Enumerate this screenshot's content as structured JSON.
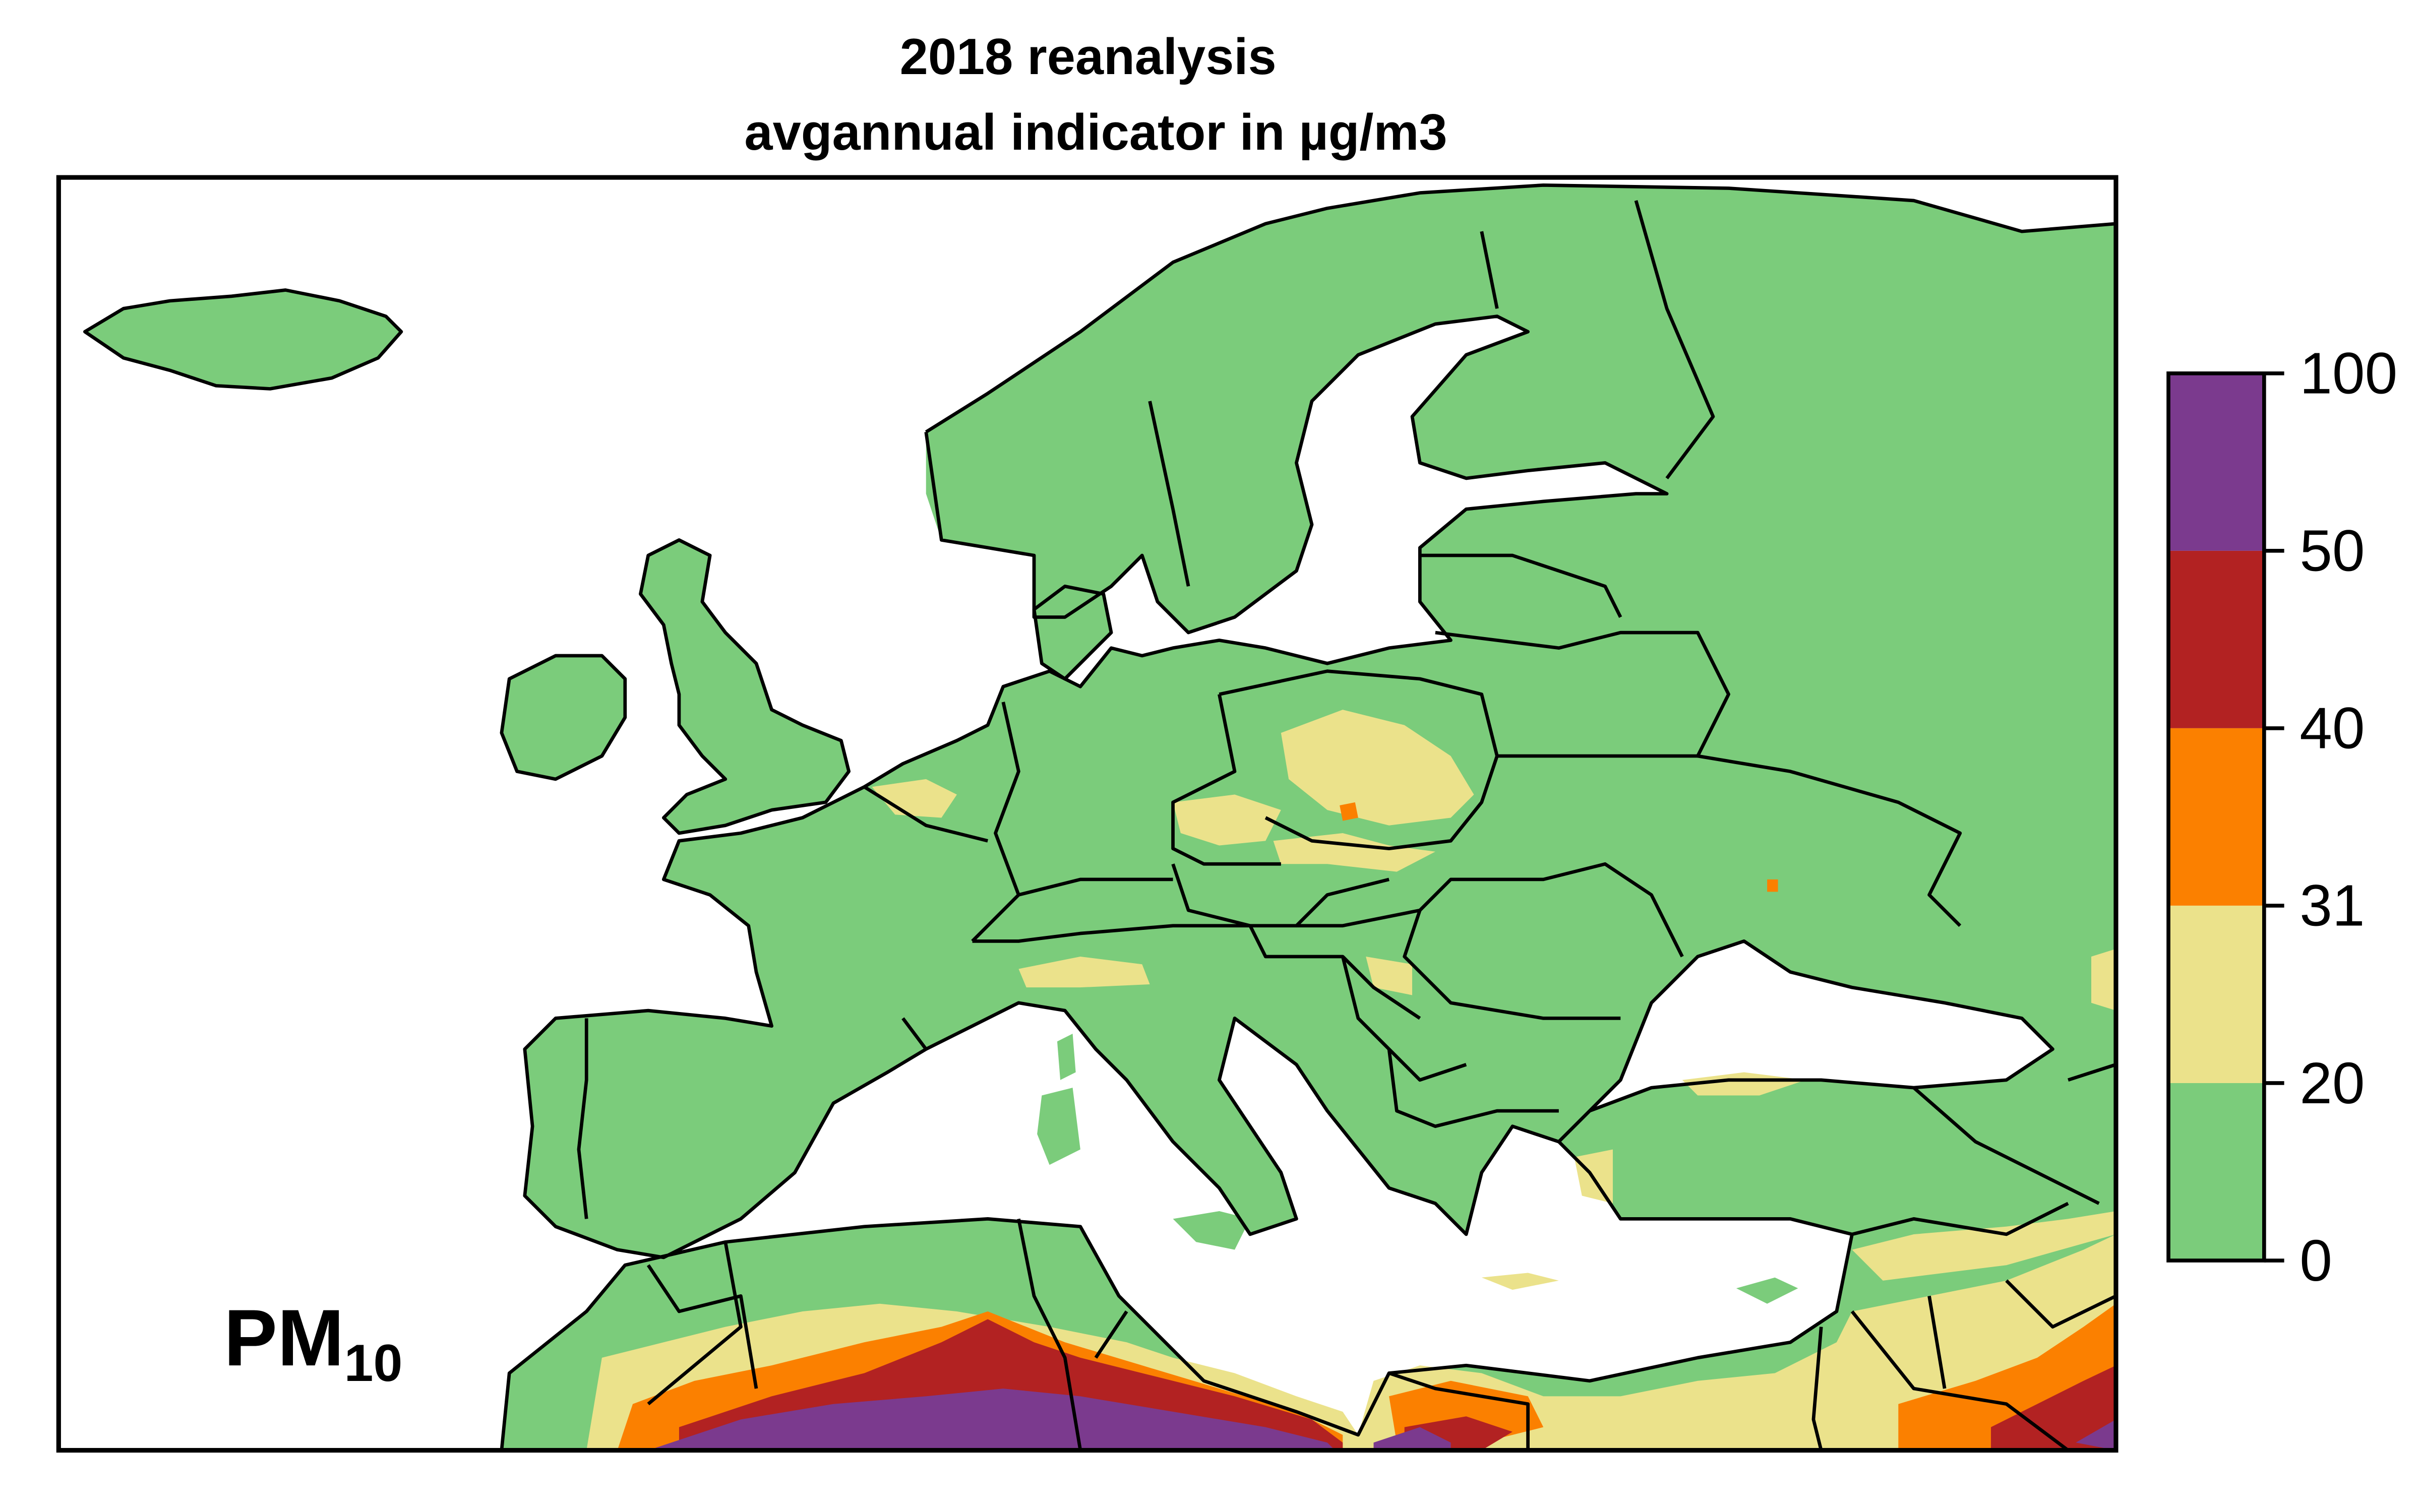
{
  "title": {
    "line1": "2018 reanalysis",
    "line2": "avgannual indicator in µg/m3"
  },
  "pollutant": {
    "label": "PM",
    "subscript": "10"
  },
  "legend": {
    "ticks": [
      "0",
      "20",
      "31",
      "40",
      "50",
      "100"
    ],
    "classes": [
      {
        "from": 0,
        "to": 20,
        "color": "#7bcc7b"
      },
      {
        "from": 20,
        "to": 31,
        "color": "#ebe28b"
      },
      {
        "from": 31,
        "to": 40,
        "color": "#fb8000"
      },
      {
        "from": 40,
        "to": 50,
        "color": "#b22222"
      },
      {
        "from": 50,
        "to": 100,
        "color": "#7b3a8e"
      }
    ]
  },
  "colors": {
    "sea": "#ffffff",
    "border": "#000000"
  }
}
